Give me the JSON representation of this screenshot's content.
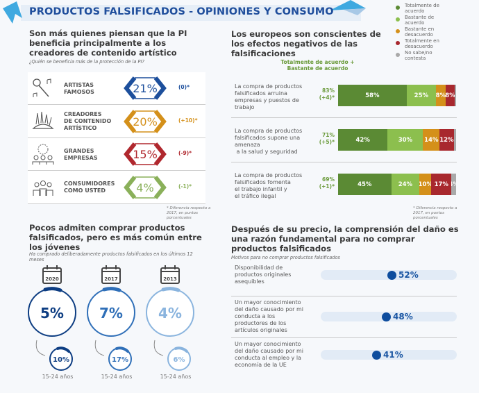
{
  "title": "PRODUCTOS FALSIFICADOS - OPINIONES Y CONSUMO",
  "beneficiaries": {
    "heading": "Son más quienes piensan que la PI beneficia principalmente a los creadores de contenido artístico",
    "subtitle": "¿Quién se beneficia más de la protección de la PI?",
    "rows": [
      {
        "label1": "ARTISTAS",
        "label2": "FAMOSOS",
        "label3": "",
        "value": "21%",
        "delta": "(0)*",
        "color": "#1d4f9c",
        "icon": "microphone-icon"
      },
      {
        "label1": "CREADORES",
        "label2": "DE CONTENIDO",
        "label3": "ARTÍSTICO",
        "value": "20%",
        "delta": "(+10)*",
        "color": "#d4901a",
        "icon": "art-supplies-icon"
      },
      {
        "label1": "GRANDES",
        "label2": "EMPRESAS",
        "label3": "",
        "value": "15%",
        "delta": "(-9)*",
        "color": "#b0282e",
        "icon": "business-people-icon"
      },
      {
        "label1": "CONSUMIDORES",
        "label2": "COMO USTED",
        "label3": "",
        "value": "4%",
        "delta": "(-1)*",
        "color": "#8ab05a",
        "icon": "consumers-icon"
      }
    ],
    "note": "* Diferencia respecto a 2017, en puntos porcentuales"
  },
  "purchases": {
    "heading": "Pocos admiten comprar productos falsificados, pero es más común entre los jóvenes",
    "subtitle": "Ha comprado deliberadamente productos falsificados en los últimos 12 meses",
    "years": [
      {
        "year": "2020",
        "all": "5%",
        "young": "10%",
        "young_label": "15-24 años",
        "color": "#0d3d82"
      },
      {
        "year": "2017",
        "all": "7%",
        "young": "17%",
        "young_label": "15-24 años",
        "color": "#2f6fb8"
      },
      {
        "year": "2013",
        "all": "4%",
        "young": "6%",
        "young_label": "15-24 años",
        "color": "#8ab4de"
      }
    ]
  },
  "awareness": {
    "heading": "Los europeos son conscientes de los efectos negativos de las falsificaciones",
    "total_header1": "Totalmente de acuerdo +",
    "total_header2": "Bastante de acuerdo",
    "note": "* Diferencia respecto a 2017, en puntos porcentuales",
    "legend": [
      {
        "label1": "Totalmente de",
        "label2": "acuerdo",
        "color": "#5b8a34"
      },
      {
        "label1": "Bastante de",
        "label2": "acuerdo",
        "color": "#8cbf4e"
      },
      {
        "label1": "Bastante en",
        "label2": "desacuerdo",
        "color": "#d4901a"
      },
      {
        "label1": "Totalmente en",
        "label2": "desacuerdo",
        "color": "#a8282e"
      },
      {
        "label1": "No sabe/no",
        "label2": "contesta",
        "color": "#a9a9a9"
      }
    ],
    "rows": [
      {
        "lines": [
          "La compra de productos",
          "falsificados arruina",
          "empresas y puestos de",
          "trabajo"
        ],
        "total": "83%",
        "delta": "(+4)*",
        "values": [
          58,
          25,
          8,
          8,
          1
        ],
        "labels": [
          "58%",
          "25%",
          "8%",
          "8%",
          ""
        ]
      },
      {
        "lines": [
          "La compra de productos",
          "falsificados supone una",
          "amenaza",
          " a la salud y seguridad"
        ],
        "total": "71%",
        "delta": "(+5)*",
        "values": [
          42,
          30,
          14,
          12,
          2
        ],
        "labels": [
          "42%",
          "30%",
          "14%",
          "12%",
          ""
        ]
      },
      {
        "lines": [
          "La compra de productos",
          "falsificados fomenta",
          "el trabajo infantil y",
          "el tráfico ilegal"
        ],
        "total": "69%",
        "delta": "(+1)*",
        "values": [
          45,
          24,
          10,
          17,
          4
        ],
        "labels": [
          "45%",
          "24%",
          "10%",
          "17%",
          "4%"
        ]
      }
    ]
  },
  "reasons": {
    "heading": "Después de su precio, la comprensión del daño es una razón fundamental para no comprar productos falsificados",
    "subtitle": "Motivos para no comprar productos falsificados",
    "rows": [
      {
        "lines": [
          "Disponibilidad de",
          "productos originales",
          "asequibles"
        ],
        "value": 52,
        "label": "52%"
      },
      {
        "lines": [
          "Un mayor conocimiento",
          "del daño causado por mi",
          "conducta a los",
          "productores de los",
          "artículos originales"
        ],
        "value": 48,
        "label": "48%"
      },
      {
        "lines": [
          "Un mayor conocimiento",
          "del daño causado por mi",
          "conducta al empleo y la",
          "economía de la UE"
        ],
        "value": 41,
        "label": "41%"
      }
    ]
  },
  "chart_data": [
    {
      "type": "table",
      "title": "¿Quién se beneficia más de la protección de la PI?",
      "categories": [
        "ARTISTAS FAMOSOS",
        "CREADORES DE CONTENIDO ARTÍSTICO",
        "GRANDES EMPRESAS",
        "CONSUMIDORES COMO USTED"
      ],
      "values": [
        21,
        20,
        15,
        4
      ],
      "deltas": [
        0,
        10,
        -9,
        -1
      ]
    },
    {
      "type": "bar",
      "stacked": true,
      "orientation": "horizontal",
      "categories": [
        "arruina empresas y puestos de trabajo",
        "amenaza a la salud y seguridad",
        "fomenta el trabajo infantil y el tráfico ilegal"
      ],
      "series": [
        {
          "name": "Totalmente de acuerdo",
          "values": [
            58,
            42,
            45
          ]
        },
        {
          "name": "Bastante de acuerdo",
          "values": [
            25,
            30,
            24
          ]
        },
        {
          "name": "Bastante en desacuerdo",
          "values": [
            8,
            14,
            10
          ]
        },
        {
          "name": "Totalmente en desacuerdo",
          "values": [
            8,
            12,
            17
          ]
        },
        {
          "name": "No sabe/no contesta",
          "values": [
            1,
            2,
            4
          ]
        }
      ],
      "legend": "top-right"
    },
    {
      "type": "table",
      "title": "Ha comprado deliberadamente productos falsificados en los últimos 12 meses",
      "categories": [
        "2020",
        "2017",
        "2013"
      ],
      "series": [
        {
          "name": "Total",
          "values": [
            5,
            7,
            4
          ]
        },
        {
          "name": "15-24 años",
          "values": [
            10,
            17,
            6
          ]
        }
      ]
    },
    {
      "type": "scatter",
      "title": "Motivos para no comprar productos falsificados",
      "categories": [
        "Disponibilidad de productos originales asequibles",
        "Daño a los productores de los artículos originales",
        "Daño al empleo y la economía de la UE"
      ],
      "values": [
        52,
        48,
        41
      ],
      "xlim": [
        0,
        100
      ]
    }
  ]
}
